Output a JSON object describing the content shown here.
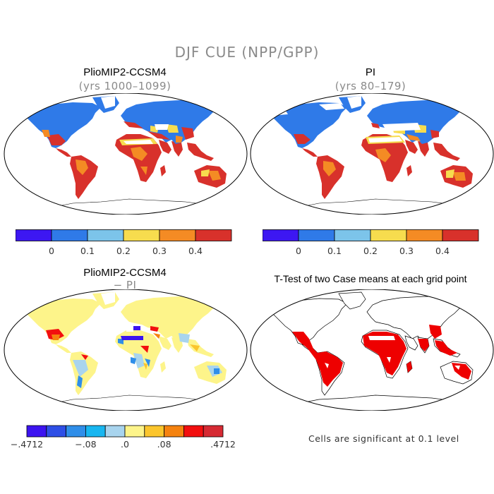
{
  "title": "DJF CUE (NPP/GPP)",
  "panels": [
    {
      "title": "PlioMIP2-CCSM4",
      "subtitle": "(yrs 1000–1099)",
      "colorbar": {
        "colors": [
          "#3d17f2",
          "#2f7ae8",
          "#7cc4ea",
          "#f7dc4e",
          "#f48b24",
          "#d8312b"
        ],
        "tick_labels": [
          "0",
          "0.1",
          "0.2",
          "0.3",
          "0.4"
        ]
      }
    },
    {
      "title": "PI",
      "subtitle": "(yrs 80–179)",
      "colorbar": {
        "colors": [
          "#3d17f2",
          "#2f7ae8",
          "#7cc4ea",
          "#f7dc4e",
          "#f48b24",
          "#d8312b"
        ],
        "tick_labels": [
          "0",
          "0.1",
          "0.2",
          "0.3",
          "0.4"
        ]
      }
    },
    {
      "title": "PlioMIP2-CCSM4",
      "subtitle": "− PI",
      "colorbar": {
        "colors": [
          "#3c14f0",
          "#2e4fe6",
          "#2f8ee9",
          "#18b6f0",
          "#a8d4ee",
          "#fdf48a",
          "#fbc52c",
          "#f5820f",
          "#f20f0f",
          "#d62a33"
        ],
        "tick_labels": [
          "−.4712",
          "−.08",
          ".0",
          ".08",
          ".4712"
        ]
      }
    },
    {
      "title": "T-Test of two Case means at each grid point",
      "subtitle": ""
    }
  ],
  "footnote": "Cells are significant at 0.1 level",
  "colors": {
    "north_cold": "#2f7ae8",
    "tropical_high": "#d8312b",
    "mid": "#f48b24",
    "dry_yellow": "#f7dc4e",
    "light_blue": "#7cc4ea",
    "diff_pale_yellow": "#fdf48a",
    "diff_red": "#f20f0f",
    "diff_blue": "#2f8ee9",
    "significant": "#ee0000"
  }
}
